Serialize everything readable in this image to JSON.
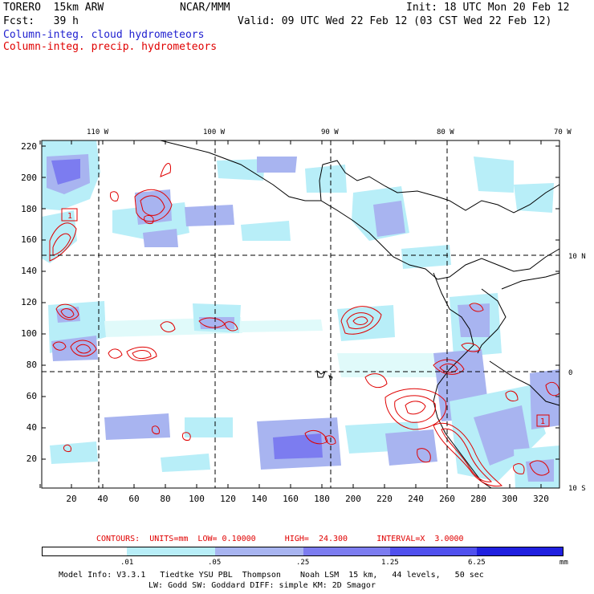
{
  "header": {
    "model": "TORERO  15km ARW",
    "org": "NCAR/MMM",
    "init": "Init: 18 UTC Mon 20 Feb 12",
    "fcst": "Fcst:   39 h",
    "valid": "Valid: 09 UTC Wed 22 Feb 12 (03 CST Wed 22 Feb 12)"
  },
  "legend_lines": {
    "cloud": "Column-integ. cloud hydrometeors",
    "precip": "Column-integ. precip. hydrometeors"
  },
  "map": {
    "lon_labels": [
      "110 W",
      "100 W",
      "90 W",
      "80 W",
      "70 W"
    ],
    "lat_labels": [
      "10 N",
      "0",
      "10 S"
    ],
    "y_ticks": [
      "220",
      "200",
      "180",
      "160",
      "140",
      "120",
      "100",
      "80",
      "60",
      "40",
      "20"
    ],
    "x_ticks": [
      "20",
      "40",
      "60",
      "80",
      "100",
      "120",
      "140",
      "160",
      "180",
      "200",
      "220",
      "240",
      "260",
      "280",
      "300",
      "320"
    ],
    "box_labels": [
      "1",
      "1"
    ]
  },
  "contours": {
    "text": "CONTOURS:  UNITS=mm  LOW= 0.10000      HIGH=  24.300      INTERVAL=X  3.0000"
  },
  "colorbar": {
    "ticks": [
      ".01",
      ".05",
      ".25",
      "1.25",
      "6.25"
    ],
    "unit": "mm",
    "colors": [
      "#ffffff",
      "#e0fafa",
      "#b8eef8",
      "#a8b4f0",
      "#7c7cf0",
      "#5050ee",
      "#2020e0"
    ]
  },
  "footer": {
    "line1": "Model Info: V3.3.1   Tiedtke YSU PBL  Thompson    Noah LSM  15 km,   44 levels,   50 sec",
    "line2": "LW: Godd SW: Goddard DIFF: simple KM: 2D Smagor"
  }
}
